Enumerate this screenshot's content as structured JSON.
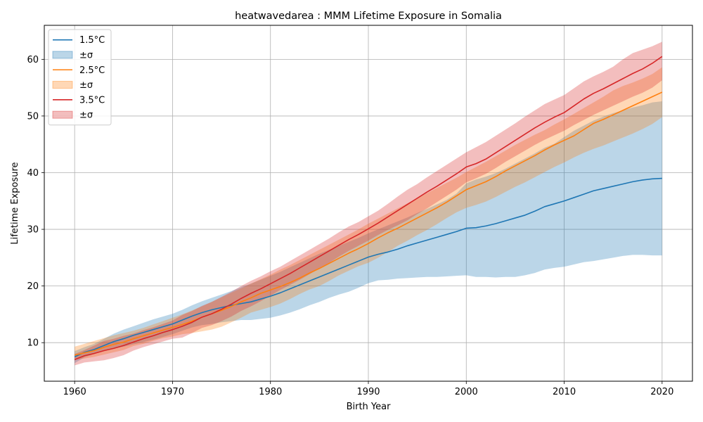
{
  "chart_data": {
    "type": "line",
    "title": "heatwavedarea : MMM Lifetime Exposure in Somalia",
    "xlabel": "Birth Year",
    "ylabel": "Lifetime Exposure",
    "xlim": [
      1956.9,
      2023.1
    ],
    "ylim": [
      3.2,
      66.0
    ],
    "xticks": [
      1960,
      1970,
      1980,
      1990,
      2000,
      2010,
      2020
    ],
    "yticks": [
      10,
      20,
      30,
      40,
      50,
      60
    ],
    "grid": true,
    "legend_position": "top-left",
    "x": [
      1960,
      1961,
      1962,
      1963,
      1964,
      1965,
      1966,
      1967,
      1968,
      1969,
      1970,
      1971,
      1972,
      1973,
      1974,
      1975,
      1976,
      1977,
      1978,
      1979,
      1980,
      1981,
      1982,
      1983,
      1984,
      1985,
      1986,
      1987,
      1988,
      1989,
      1990,
      1991,
      1992,
      1993,
      1994,
      1995,
      1996,
      1997,
      1998,
      1999,
      2000,
      2001,
      2002,
      2003,
      2004,
      2005,
      2006,
      2007,
      2008,
      2009,
      2010,
      2011,
      2012,
      2013,
      2014,
      2015,
      2016,
      2017,
      2018,
      2019,
      2020
    ],
    "series": [
      {
        "name": "1.5°C",
        "band_label": "±σ",
        "color": "#1f77b4",
        "values": [
          7.5,
          8.3,
          8.8,
          9.5,
          10.2,
          10.7,
          11.3,
          11.8,
          12.3,
          12.8,
          13.3,
          14.0,
          14.7,
          15.3,
          15.8,
          16.2,
          16.6,
          16.9,
          17.2,
          17.7,
          18.2,
          18.8,
          19.5,
          20.2,
          20.9,
          21.6,
          22.3,
          23.0,
          23.7,
          24.4,
          25.1,
          25.6,
          26.0,
          26.5,
          27.1,
          27.6,
          28.1,
          28.6,
          29.1,
          29.6,
          30.2,
          30.3,
          30.6,
          31.0,
          31.5,
          32.0,
          32.5,
          33.2,
          34.0,
          34.5,
          35.0,
          35.6,
          36.2,
          36.8,
          37.2,
          37.6,
          38.0,
          38.4,
          38.7,
          38.9,
          39.0
        ],
        "lower": [
          6.4,
          7.4,
          8.0,
          8.6,
          9.0,
          9.3,
          9.7,
          10.1,
          10.5,
          11.0,
          11.5,
          12.1,
          12.7,
          13.1,
          13.3,
          13.6,
          13.8,
          14.0,
          14.0,
          14.2,
          14.4,
          14.8,
          15.3,
          15.9,
          16.6,
          17.2,
          17.9,
          18.5,
          19.0,
          19.7,
          20.5,
          21.0,
          21.1,
          21.3,
          21.4,
          21.5,
          21.6,
          21.6,
          21.7,
          21.8,
          21.9,
          21.6,
          21.6,
          21.5,
          21.6,
          21.6,
          21.9,
          22.3,
          22.9,
          23.2,
          23.4,
          23.8,
          24.2,
          24.4,
          24.7,
          25.0,
          25.3,
          25.5,
          25.5,
          25.4,
          25.4
        ],
        "upper": [
          8.5,
          9.2,
          9.8,
          10.7,
          11.6,
          12.3,
          12.9,
          13.5,
          14.1,
          14.6,
          15.1,
          15.8,
          16.6,
          17.3,
          17.9,
          18.5,
          19.1,
          19.8,
          20.4,
          21.1,
          21.8,
          22.5,
          23.3,
          24.1,
          24.9,
          25.7,
          26.4,
          27.1,
          27.8,
          28.5,
          29.3,
          30.0,
          30.7,
          31.4,
          32.1,
          32.9,
          33.6,
          34.4,
          35.2,
          36.3,
          38.1,
          38.8,
          39.3,
          39.9,
          40.7,
          41.6,
          42.5,
          43.4,
          44.4,
          45.1,
          46.3,
          47.4,
          48.3,
          49.2,
          49.9,
          50.5,
          51.0,
          51.5,
          51.9,
          52.4,
          52.6
        ]
      },
      {
        "name": "2.5°C",
        "band_label": "±σ",
        "color": "#ff7f0e",
        "values": [
          7.8,
          8.2,
          8.6,
          9.2,
          9.7,
          10.1,
          10.7,
          11.2,
          11.7,
          12.2,
          12.7,
          13.2,
          13.8,
          14.5,
          15.1,
          15.7,
          16.4,
          17.2,
          17.9,
          18.7,
          19.3,
          19.9,
          20.6,
          21.4,
          22.3,
          23.1,
          24.0,
          24.9,
          25.8,
          26.6,
          27.5,
          28.5,
          29.4,
          30.2,
          31.1,
          32.0,
          32.9,
          33.8,
          34.8,
          35.9,
          37.0,
          37.7,
          38.4,
          39.3,
          40.3,
          41.2,
          42.1,
          43.0,
          44.0,
          44.9,
          45.7,
          46.5,
          47.6,
          48.7,
          49.4,
          50.2,
          51.0,
          51.8,
          52.6,
          53.4,
          54.2
        ],
        "lower": [
          7.0,
          7.2,
          7.5,
          7.9,
          8.3,
          8.7,
          9.4,
          9.8,
          10.3,
          10.8,
          11.1,
          11.5,
          11.7,
          12.0,
          12.3,
          12.8,
          13.6,
          14.4,
          15.3,
          15.8,
          16.3,
          16.9,
          17.7,
          18.6,
          19.4,
          20.0,
          20.9,
          21.9,
          22.7,
          23.5,
          24.1,
          25.0,
          26.0,
          27.1,
          28.0,
          29.0,
          29.9,
          30.9,
          32.0,
          33.0,
          33.8,
          34.3,
          34.9,
          35.7,
          36.6,
          37.5,
          38.3,
          39.2,
          40.1,
          41.0,
          41.8,
          42.7,
          43.5,
          44.2,
          44.8,
          45.5,
          46.2,
          46.9,
          47.7,
          48.6,
          49.8
        ],
        "upper": [
          9.3,
          9.8,
          10.3,
          10.8,
          11.3,
          11.7,
          12.1,
          12.6,
          13.2,
          13.8,
          14.4,
          15.0,
          15.7,
          16.4,
          17.2,
          18.0,
          18.8,
          19.6,
          20.4,
          21.2,
          22.0,
          22.9,
          23.7,
          24.6,
          25.5,
          26.4,
          27.3,
          28.2,
          29.1,
          30.0,
          31.0,
          31.9,
          32.8,
          33.7,
          34.6,
          35.5,
          36.4,
          37.3,
          38.2,
          39.1,
          40.1,
          41.0,
          41.9,
          42.9,
          43.9,
          44.9,
          45.8,
          46.7,
          47.5,
          48.5,
          49.4,
          50.4,
          51.4,
          52.4,
          53.4,
          54.5,
          55.3,
          55.9,
          56.6,
          57.4,
          58.6
        ]
      },
      {
        "name": "3.5°C",
        "band_label": "±σ",
        "color": "#d62728",
        "values": [
          7.0,
          7.7,
          8.1,
          8.6,
          9.0,
          9.5,
          10.1,
          10.7,
          11.2,
          11.8,
          12.3,
          12.9,
          13.6,
          14.5,
          15.1,
          15.9,
          16.8,
          17.8,
          18.7,
          19.5,
          20.4,
          21.3,
          22.2,
          23.2,
          24.2,
          25.2,
          26.2,
          27.2,
          28.2,
          29.1,
          30.1,
          31.1,
          32.2,
          33.3,
          34.4,
          35.5,
          36.6,
          37.6,
          38.7,
          39.8,
          41.0,
          41.6,
          42.4,
          43.5,
          44.6,
          45.7,
          46.8,
          47.9,
          48.9,
          49.8,
          50.6,
          51.8,
          53.0,
          54.0,
          54.8,
          55.7,
          56.6,
          57.5,
          58.3,
          59.3,
          60.5
        ],
        "lower": [
          6.0,
          6.5,
          6.7,
          6.9,
          7.3,
          7.8,
          8.6,
          9.2,
          9.7,
          10.2,
          10.7,
          10.9,
          11.7,
          12.6,
          13.1,
          13.8,
          14.6,
          15.6,
          16.4,
          17.3,
          18.3,
          19.3,
          20.2,
          21.1,
          22.1,
          23.1,
          24.1,
          25.2,
          26.2,
          27.1,
          28.0,
          29.0,
          29.9,
          30.7,
          31.6,
          32.7,
          33.7,
          34.8,
          35.9,
          37.0,
          38.3,
          39.0,
          39.8,
          40.8,
          41.9,
          42.9,
          43.9,
          44.9,
          45.8,
          46.6,
          47.4,
          48.4,
          49.3,
          50.2,
          51.0,
          51.8,
          52.6,
          53.4,
          54.1,
          55.0,
          56.3
        ],
        "upper": [
          8.0,
          8.7,
          9.5,
          10.3,
          10.7,
          11.2,
          11.6,
          12.2,
          12.7,
          13.3,
          13.9,
          14.9,
          15.6,
          16.5,
          17.2,
          18.1,
          19.0,
          20.0,
          20.9,
          21.7,
          22.6,
          23.4,
          24.4,
          25.4,
          26.4,
          27.4,
          28.4,
          29.5,
          30.5,
          31.3,
          32.3,
          33.3,
          34.5,
          35.8,
          37.0,
          38.0,
          39.2,
          40.3,
          41.4,
          42.5,
          43.6,
          44.5,
          45.4,
          46.5,
          47.6,
          48.7,
          49.9,
          51.0,
          52.1,
          52.9,
          53.7,
          54.9,
          56.1,
          57.0,
          57.8,
          58.7,
          60.0,
          61.1,
          61.7,
          62.3,
          63.1
        ]
      }
    ]
  }
}
